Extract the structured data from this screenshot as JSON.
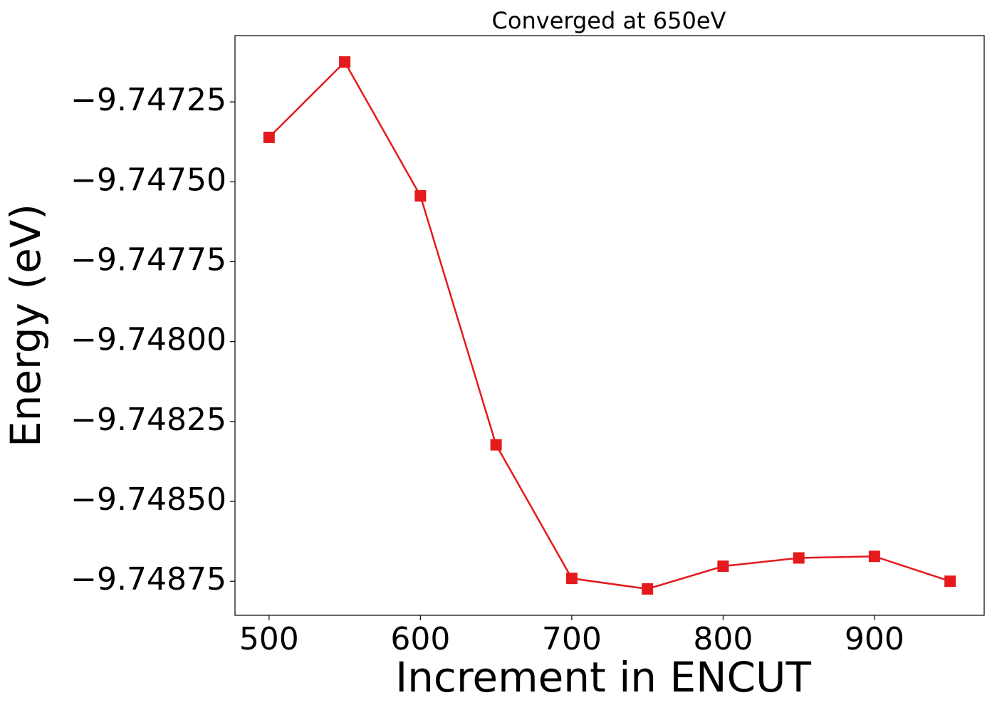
{
  "chart_data": {
    "type": "line",
    "title": "Converged at 650eV",
    "x_label": "Increment in ENCUT",
    "y_label": "Energy (eV)",
    "x": [
      500,
      550,
      600,
      650,
      700,
      750,
      800,
      850,
      900,
      950
    ],
    "series": [
      {
        "color": "#e41a1c",
        "marker": "square",
        "values": [
          -9.747361,
          -9.747125,
          -9.747544,
          -9.748323,
          -9.748741,
          -9.748774,
          -9.748703,
          -9.748677,
          -9.748672,
          -9.74875
        ]
      }
    ],
    "xlim": [
      477.5,
      972.5
    ],
    "ylim": [
      -9.7488565,
      -9.7470425
    ],
    "xticks": [
      500,
      600,
      700,
      800,
      900
    ],
    "yticks": [
      {
        "value": -9.74725,
        "label": "−9.74725"
      },
      {
        "value": -9.7475,
        "label": "−9.74750"
      },
      {
        "value": -9.74775,
        "label": "−9.74775"
      },
      {
        "value": -9.748,
        "label": "−9.74800"
      },
      {
        "value": -9.74825,
        "label": "−9.74825"
      },
      {
        "value": -9.7485,
        "label": "−9.74850"
      },
      {
        "value": -9.74875,
        "label": "−9.74875"
      }
    ],
    "grid": false
  }
}
